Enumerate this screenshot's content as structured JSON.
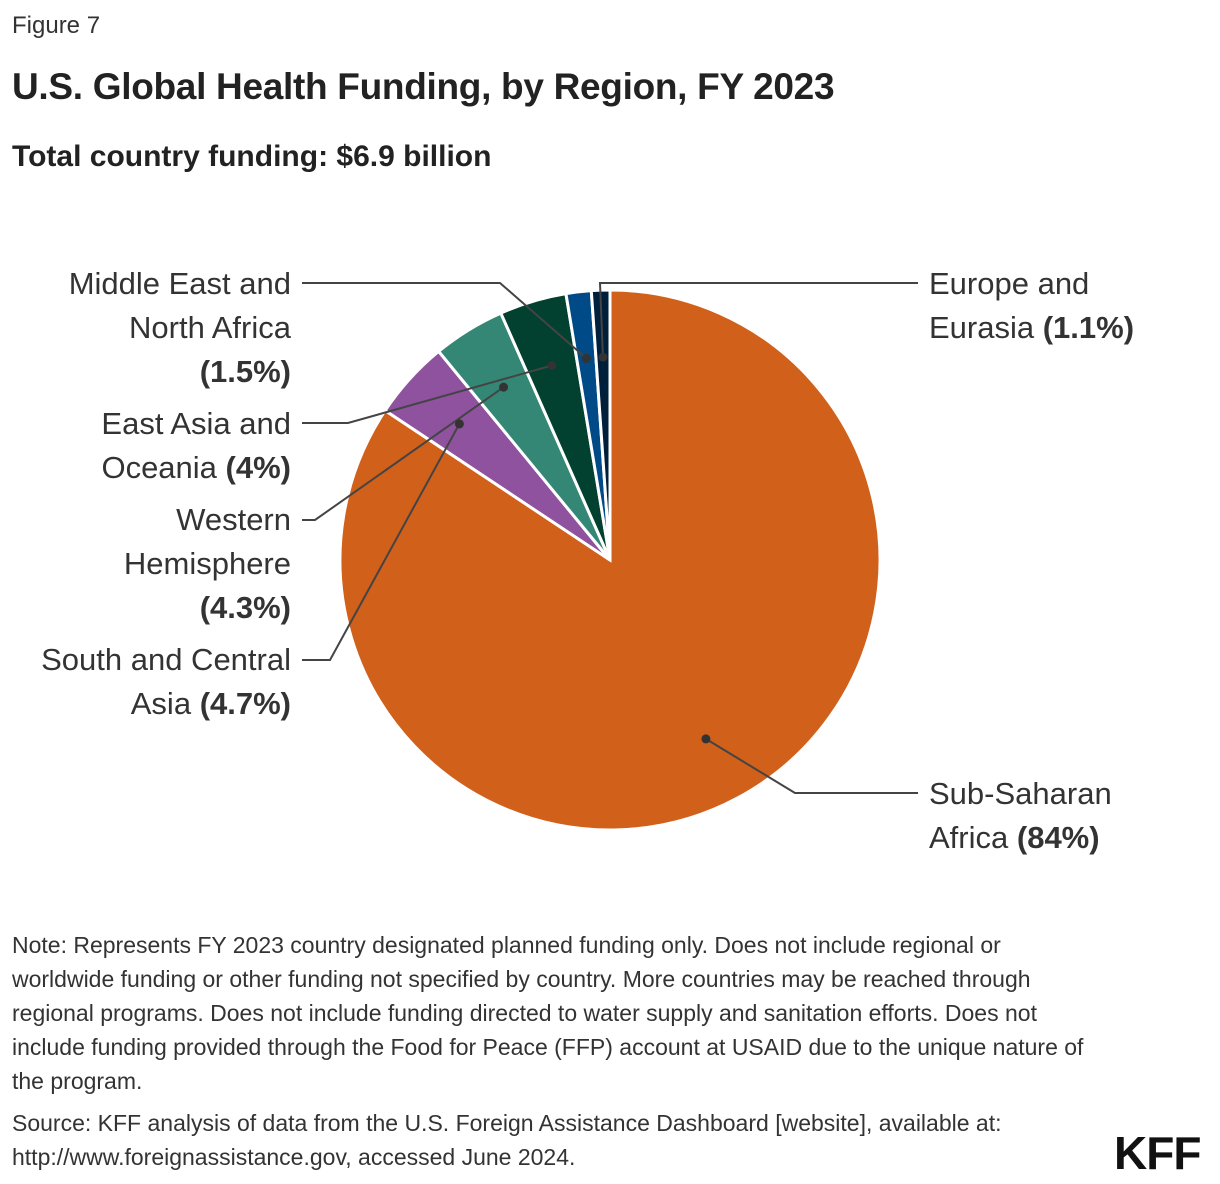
{
  "figure_label": "Figure 7",
  "chart_data": {
    "type": "pie",
    "title": "U.S. Global Health Funding, by Region, FY 2023",
    "subtitle": "Total country funding: $6.9 billion",
    "slices": [
      {
        "name": "Sub-Saharan Africa",
        "value": 84,
        "label": "(84%)",
        "color": "#D0601A"
      },
      {
        "name": "South and Central Asia",
        "value": 4.7,
        "label": "(4.7%)",
        "color": "#8F529E"
      },
      {
        "name": "Western Hemisphere",
        "value": 4.3,
        "label": "(4.3%)",
        "color": "#358775"
      },
      {
        "name": "East Asia and Oceania",
        "value": 4,
        "label": "(4%)",
        "color": "#02412F"
      },
      {
        "name": "Middle East and North Africa",
        "value": 1.5,
        "label": "(1.5%)",
        "color": "#004A87"
      },
      {
        "name": "Europe and Eurasia",
        "value": 1.1,
        "label": "(1.1%)",
        "color": "#001F3A"
      }
    ]
  },
  "note": "Note: Represents FY 2023 country designated planned funding only. Does not include regional or worldwide funding or other funding not specified by country. More countries may be reached through regional programs. Does not include funding directed to water supply and sanitation efforts. Does not include funding provided through the Food for Peace (FFP) account at USAID due to the unique nature of the program.",
  "source": "Source: KFF analysis of data from the U.S. Foreign Assistance Dashboard [website], available at: http://www.foreignassistance.gov, accessed June 2024.",
  "logo": "KFF"
}
